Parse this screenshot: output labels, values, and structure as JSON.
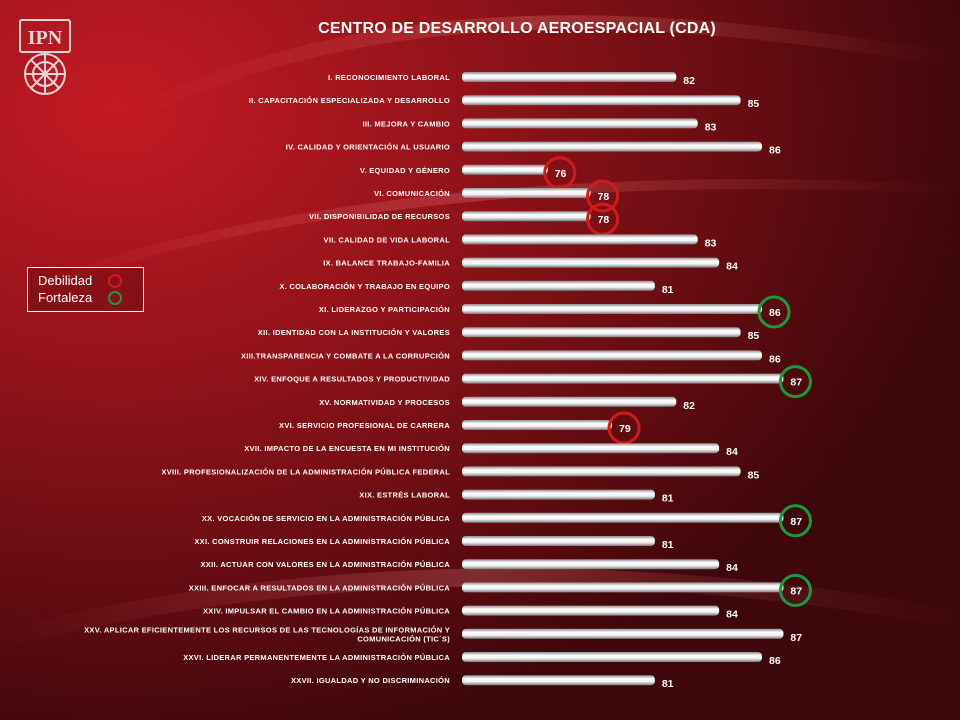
{
  "title": "CENTRO DE DESARROLLO AEROESPACIAL (CDA)",
  "logo_text": "IPN",
  "legend": [
    {
      "label": "Debilidad",
      "color": "#d11b1b",
      "icon": "red-circle-icon"
    },
    {
      "label": "Fortaleza",
      "color": "#1a9a3c",
      "icon": "green-circle-icon"
    }
  ],
  "colors": {
    "weakness": "#d11b1b",
    "strength": "#1a9a3c",
    "bar": "#f2f2f2"
  },
  "chart_data": {
    "type": "bar",
    "orientation": "horizontal",
    "title": "CENTRO DE DESARROLLO AEROESPACIAL (CDA)",
    "xlim": [
      60,
      90
    ],
    "grid": false,
    "legend_placement": "left",
    "categories": [
      [
        "I. RECONOCIMIENTO LABORAL"
      ],
      [
        "II. CAPACITACIÓN ESPECIALIZADA Y DESARROLLO"
      ],
      [
        "III. MEJORA Y CAMBIO"
      ],
      [
        "IV. CALIDAD Y ORIENTACIÓN AL USUARIO"
      ],
      [
        "V. EQUIDAD Y GÉNERO"
      ],
      [
        "VI. COMUNICACIÓN"
      ],
      [
        "VII. DISPONIBILIDAD DE RECURSOS"
      ],
      [
        "VII. CALIDAD DE VIDA LABORAL"
      ],
      [
        "IX. BALANCE TRABAJO-FAMILIA"
      ],
      [
        "X. COLABORACIÓN Y TRABAJO EN EQUIPO"
      ],
      [
        "XI. LIDERAZGO Y PARTICIPACIÓN"
      ],
      [
        "XII. IDENTIDAD CON LA INSTITUCIÓN Y VALORES"
      ],
      [
        "XIII.TRANSPARENCIA Y COMBATE A LA CORRUPCIÓN"
      ],
      [
        "XIV. ENFOQUE A RESULTADOS Y PRODUCTIVIDAD"
      ],
      [
        "XV. NORMATIVIDAD Y PROCESOS"
      ],
      [
        "XVI. SERVICIO PROFESIONAL DE CARRERA"
      ],
      [
        "XVII. IMPACTO DE LA ENCUESTA EN MI INSTITUCIÓN"
      ],
      [
        "XVIII. PROFESIONALIZACIÓN DE LA ADMINISTRACIÓN PÚBLICA FEDERAL"
      ],
      [
        "XIX. ESTRÉS LABORAL"
      ],
      [
        "XX. VOCACIÓN DE SERVICIO EN LA ADMINISTRACIÓN PÚBLICA"
      ],
      [
        "XXI. CONSTRUIR RELACIONES EN LA ADMINISTRACIÓN PÚBLICA"
      ],
      [
        "XXII. ACTUAR CON VALORES EN LA ADMINISTRACIÓN PÚBLICA"
      ],
      [
        "XXIII. ENFOCAR A RESULTADOS EN LA ADMINISTRACIÓN PÚBLICA"
      ],
      [
        "XXIV. IMPULSAR EL CAMBIO EN LA ADMINISTRACIÓN PÚBLICA"
      ],
      [
        "XXV. APLICAR EFICIENTEMENTE LOS RECURSOS DE LAS TECNOLOGÍAS DE INFORMACIÓN Y",
        "COMUNICACIÓN (TIC´S)"
      ],
      [
        "XXVI. LIDERAR PERMANENTEMENTE LA ADMINISTRACIÓN PÚBLICA"
      ],
      [
        "XXVII. IGUALDAD Y NO DISCRIMINACIÓN"
      ]
    ],
    "values": [
      82,
      85,
      83,
      86,
      76,
      78,
      78,
      83,
      84,
      81,
      86,
      85,
      86,
      87,
      82,
      79,
      84,
      85,
      81,
      87,
      81,
      84,
      87,
      84,
      87,
      86,
      81
    ],
    "highlights": [
      {
        "index": 4,
        "kind": "weakness"
      },
      {
        "index": 5,
        "kind": "weakness"
      },
      {
        "index": 6,
        "kind": "weakness"
      },
      {
        "index": 15,
        "kind": "weakness"
      },
      {
        "index": 10,
        "kind": "strength"
      },
      {
        "index": 13,
        "kind": "strength"
      },
      {
        "index": 19,
        "kind": "strength"
      },
      {
        "index": 22,
        "kind": "strength"
      }
    ]
  }
}
